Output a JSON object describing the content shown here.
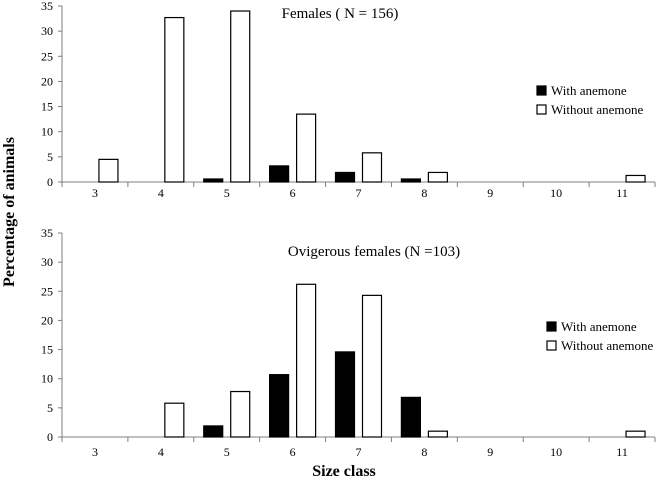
{
  "figure": {
    "y_axis_label": "Percentage of animals",
    "x_axis_label": "Size class"
  },
  "chart_data": [
    {
      "type": "bar",
      "title": "Females",
      "subtitle": "( N = 156)",
      "xlabel": "Size class",
      "ylabel": "Percentage of animals",
      "categories": [
        "3",
        "4",
        "5",
        "6",
        "7",
        "8",
        "9",
        "10",
        "11"
      ],
      "ylim": [
        0,
        35
      ],
      "yticks": [
        "0",
        "5",
        "10",
        "15",
        "20",
        "25",
        "30",
        "35"
      ],
      "grid": false,
      "legend_position": "right",
      "series": [
        {
          "name": "With anemone",
          "color": "#000000",
          "fill": "#000000",
          "values": [
            0,
            0,
            0.6,
            3.2,
            1.9,
            0.6,
            0,
            0,
            0
          ]
        },
        {
          "name": "Without anemone",
          "color": "#000000",
          "fill": "#ffffff",
          "values": [
            4.5,
            32.7,
            34.0,
            13.5,
            5.8,
            1.9,
            0,
            0,
            1.3
          ]
        }
      ]
    },
    {
      "type": "bar",
      "title": "Ovigerous females",
      "subtitle": "(N =103)",
      "xlabel": "Size class",
      "ylabel": "Percentage of animals",
      "categories": [
        "3",
        "4",
        "5",
        "6",
        "7",
        "8",
        "9",
        "10",
        "11"
      ],
      "ylim": [
        0,
        35
      ],
      "yticks": [
        "0",
        "5",
        "10",
        "15",
        "20",
        "25",
        "30",
        "35"
      ],
      "grid": false,
      "legend_position": "right",
      "series": [
        {
          "name": "With anemone",
          "color": "#000000",
          "fill": "#000000",
          "values": [
            0,
            0,
            1.9,
            10.7,
            14.6,
            6.8,
            0,
            0,
            0
          ]
        },
        {
          "name": "Without anemone",
          "color": "#000000",
          "fill": "#ffffff",
          "values": [
            0,
            5.8,
            7.8,
            26.2,
            24.3,
            1.0,
            0,
            0,
            1.0
          ]
        }
      ]
    }
  ]
}
